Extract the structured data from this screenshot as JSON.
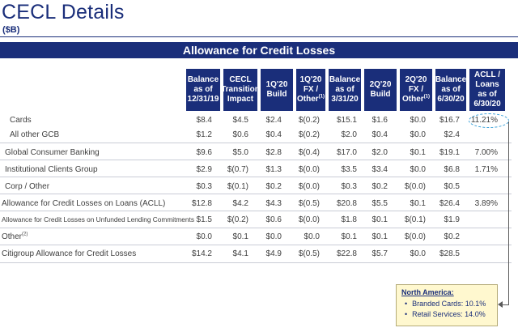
{
  "page": {
    "title": "CECL Details",
    "subtitle": "($B)",
    "banner": "Allowance for Credit Losses"
  },
  "columns": [
    {
      "lines": [
        "Balance",
        "as of",
        "12/31/19"
      ]
    },
    {
      "lines": [
        "CECL",
        "Transition",
        "Impact"
      ]
    },
    {
      "lines": [
        "1Q'20",
        "Build"
      ]
    },
    {
      "lines": [
        "1Q'20",
        "FX /",
        "Other"
      ],
      "sup": "(1)"
    },
    {
      "lines": [
        "Balance",
        "as of",
        "3/31/20"
      ]
    },
    {
      "lines": [
        "2Q'20",
        "Build"
      ]
    },
    {
      "lines": [
        "2Q'20",
        "FX /",
        "Other"
      ],
      "sup": "(1)"
    },
    {
      "lines": [
        "Balance",
        "as of",
        "6/30/20"
      ]
    },
    {
      "lines": [
        "ACLL /",
        "Loans",
        "as of",
        "6/30/20"
      ]
    }
  ],
  "rows": [
    {
      "label": "Cards",
      "values": [
        "$8.4",
        "$4.5",
        "$2.4",
        "$(0.2)",
        "$15.1",
        "$1.6",
        "$0.0",
        "$16.7",
        "11.21%"
      ]
    },
    {
      "label": "All other GCB",
      "values": [
        "$1.2",
        "$0.6",
        "$0.4",
        "$(0.2)",
        "$2.0",
        "$0.4",
        "$0.0",
        "$2.4",
        ""
      ]
    },
    {
      "label": "Global Consumer Banking",
      "values": [
        "$9.6",
        "$5.0",
        "$2.8",
        "$(0.4)",
        "$17.0",
        "$2.0",
        "$0.1",
        "$19.1",
        "7.00%"
      ]
    },
    {
      "label": "Institutional Clients Group",
      "values": [
        "$2.9",
        "$(0.7)",
        "$1.3",
        "$(0.0)",
        "$3.5",
        "$3.4",
        "$0.0",
        "$6.8",
        "1.71%"
      ]
    },
    {
      "label": "Corp / Other",
      "values": [
        "$0.3",
        "$(0.1)",
        "$0.2",
        "$(0.0)",
        "$0.3",
        "$0.2",
        "$(0.0)",
        "$0.5",
        ""
      ]
    },
    {
      "label": "Allowance for Credit Losses on Loans (ACLL)",
      "values": [
        "$12.8",
        "$4.2",
        "$4.3",
        "$(0.5)",
        "$20.8",
        "$5.5",
        "$0.1",
        "$26.4",
        "3.89%"
      ]
    },
    {
      "label": "Allowance for Credit Losses on Unfunded Lending Commitments",
      "values": [
        "$1.5",
        "$(0.2)",
        "$0.6",
        "$(0.0)",
        "$1.8",
        "$0.1",
        "$(0.1)",
        "$1.9",
        ""
      ]
    },
    {
      "label": "Other",
      "sup": "(2)",
      "values": [
        "$0.0",
        "$0.1",
        "$0.0",
        "$0.0",
        "$0.1",
        "$0.1",
        "$(0.0)",
        "$0.2",
        ""
      ]
    },
    {
      "label": "Citigroup Allowance for Credit Losses",
      "values": [
        "$14.2",
        "$4.1",
        "$4.9",
        "$(0.5)",
        "$22.8",
        "$5.7",
        "$0.0",
        "$28.5",
        ""
      ]
    }
  ],
  "callout": {
    "title": "North America:",
    "items": [
      "Branded Cards: 10.1%",
      "Retail Services: 14.0%"
    ],
    "bullet": "•"
  },
  "colors": {
    "navy": "#1a2e7a",
    "callout_bg": "#fff8cf",
    "highlight": "#3aa0d8"
  }
}
